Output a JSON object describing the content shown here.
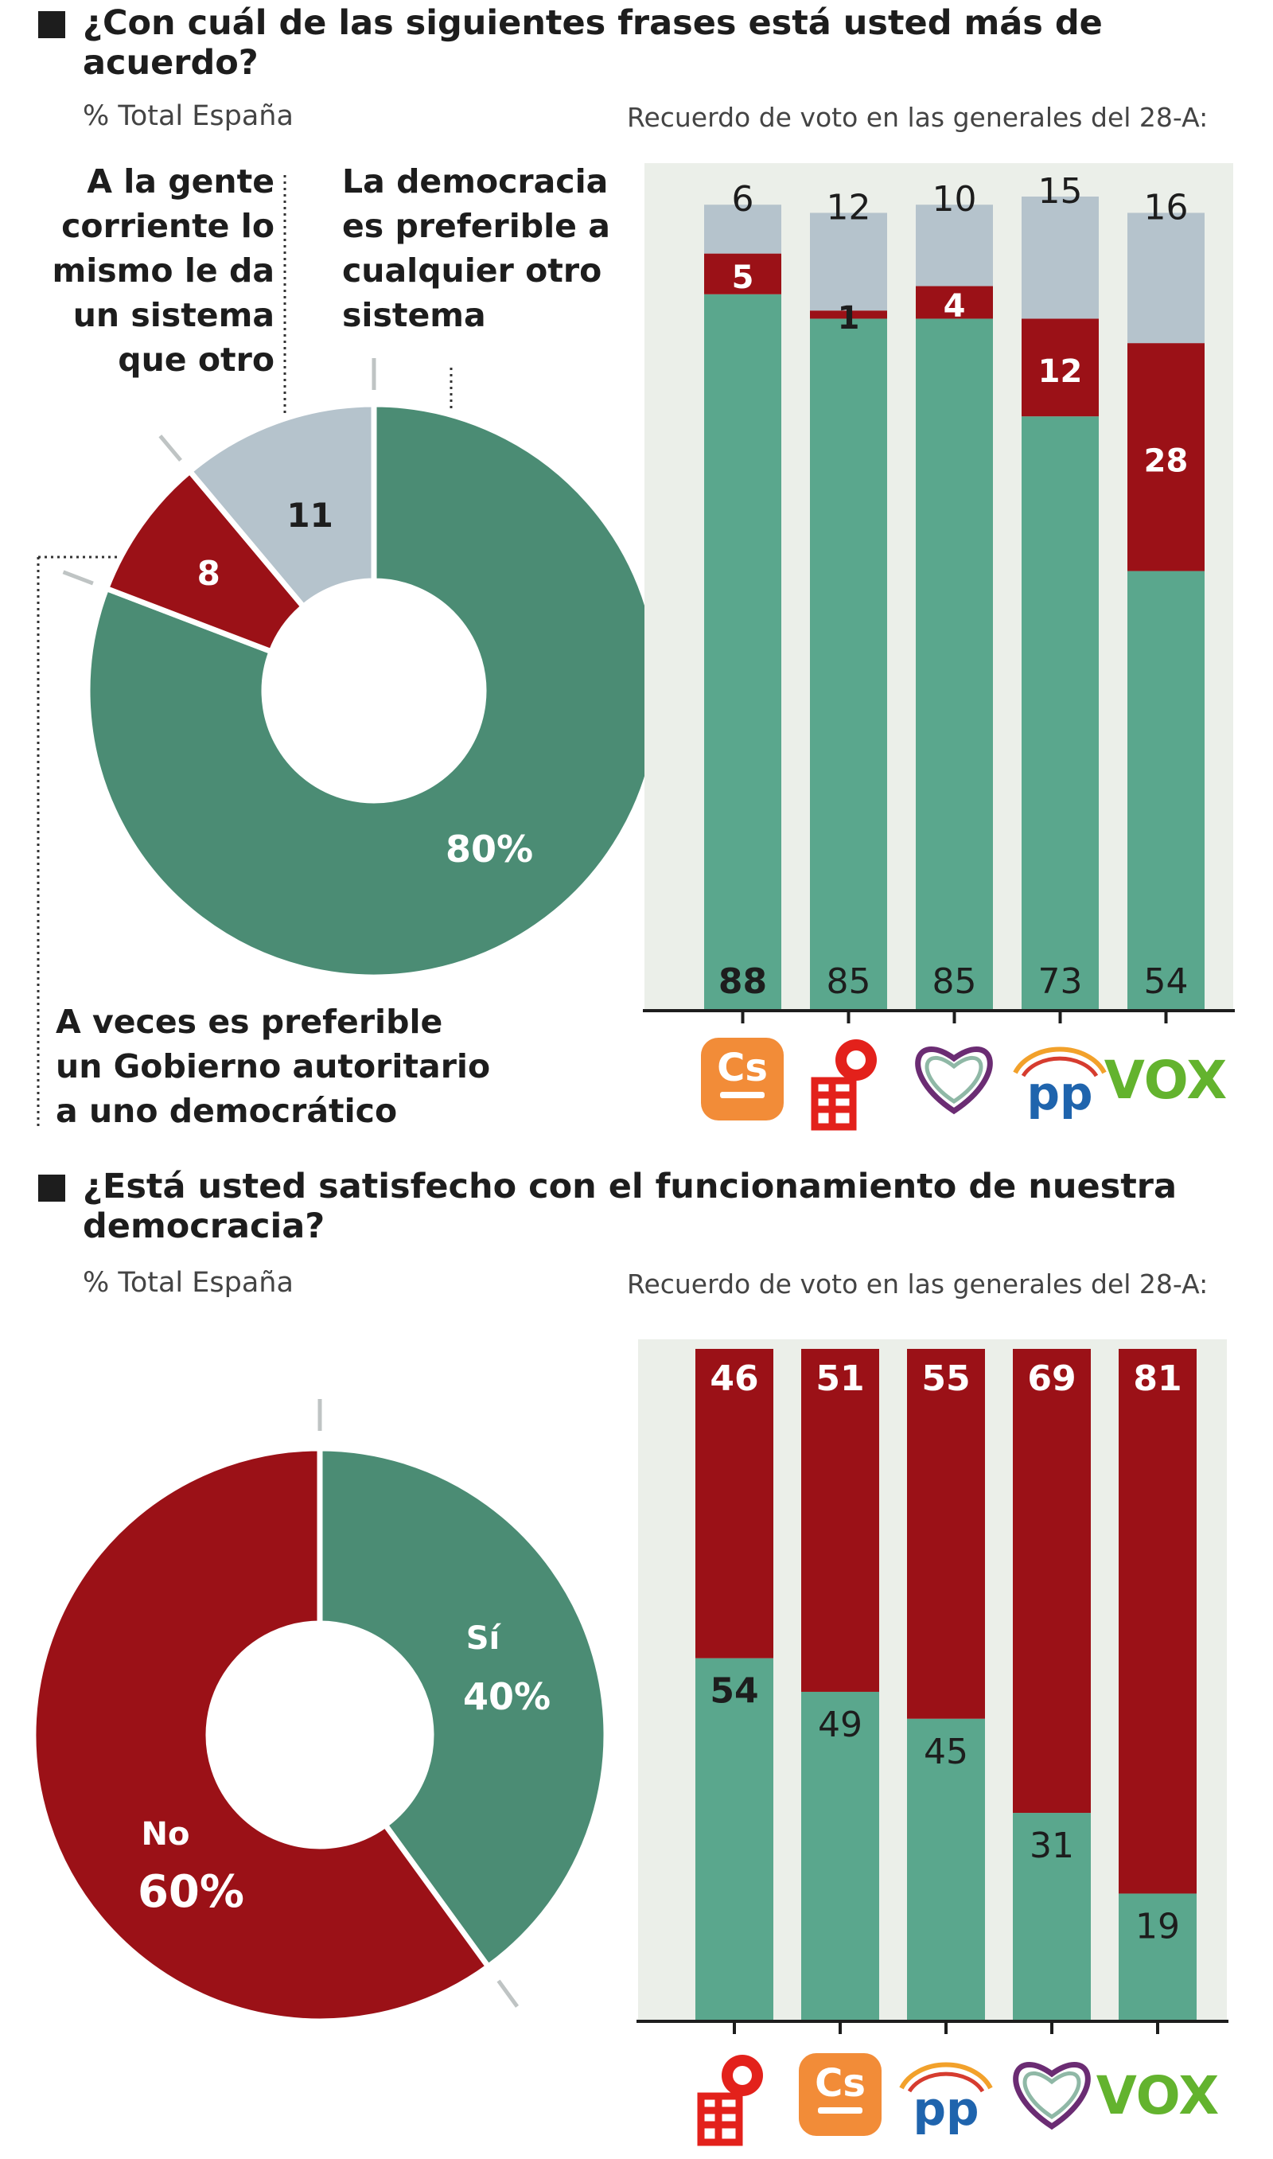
{
  "colors": {
    "green_pie": "#4b8c74",
    "green_bar": "#5aa78d",
    "red": "#9b1117",
    "grey": "#b5c3cc",
    "panel": "#ebefe9",
    "text": "#1d1d1d",
    "cs_orange": "#f28c38",
    "psoe_red": "#e3211b",
    "pp_blue": "#1f64ad",
    "vox_green": "#63b32e",
    "podemos_purple": "#6b2c73"
  },
  "q1": {
    "title": "¿Con cuál de las siguientes frases está usted más de acuerdo?",
    "subtitle_left": "% Total España",
    "subtitle_right": "Recuerdo de voto en las generales del 28-A:",
    "label_same": [
      "A la gente",
      "corriente lo",
      "mismo le da",
      "un sistema",
      "que otro"
    ],
    "label_democracy": [
      "La democracia",
      "es preferible a",
      "cualquier otro",
      "sistema"
    ],
    "label_authoritarian": [
      "A veces es preferible",
      "un Gobierno autoritario",
      "a uno democrático"
    ],
    "logos": [
      "Cs",
      "PSOE",
      "Podemos",
      "PP",
      "VOX"
    ]
  },
  "q2": {
    "title": "¿Está usted satisfecho con el funcionamiento de nuestra democracia?",
    "subtitle_left": "% Total España",
    "subtitle_right": "Recuerdo de voto en las generales del 28-A:",
    "logos": [
      "PSOE",
      "Cs",
      "PP",
      "Podemos",
      "VOX"
    ]
  },
  "chart_data": [
    {
      "type": "pie",
      "title": "¿Con cuál de las siguientes frases está usted más de acuerdo?",
      "subtitle": "% Total España",
      "slices": [
        {
          "name": "La democracia es preferible a cualquier otro sistema",
          "value": 80,
          "label": "80%"
        },
        {
          "name": "A veces es preferible un Gobierno autoritario a uno democrático",
          "value": 8,
          "label": "8"
        },
        {
          "name": "A la gente corriente lo mismo le da un sistema que otro",
          "value": 11,
          "label": "11"
        }
      ]
    },
    {
      "type": "bar",
      "stacked": true,
      "title": "Recuerdo de voto en las generales del 28-A:",
      "categories": [
        "Cs",
        "PSOE",
        "Podemos",
        "PP",
        "VOX"
      ],
      "series": [
        {
          "name": "La democracia es preferible",
          "values": [
            88,
            85,
            85,
            73,
            54
          ],
          "labels": [
            "88",
            "85",
            "85",
            "73",
            "54"
          ]
        },
        {
          "name": "Gobierno autoritario",
          "values": [
            5,
            1,
            4,
            12,
            28
          ],
          "labels": [
            "5",
            "1",
            "4",
            "12",
            "28"
          ]
        },
        {
          "name": "Lo mismo le da",
          "values": [
            6,
            12,
            10,
            15,
            16
          ],
          "labels": [
            "6",
            "12",
            "10",
            "15",
            "16"
          ]
        }
      ],
      "ylim": [
        0,
        100
      ]
    },
    {
      "type": "pie",
      "title": "¿Está usted satisfecho con el funcionamiento de nuestra democracia?",
      "subtitle": "% Total España",
      "slices": [
        {
          "name": "Sí",
          "value": 40,
          "label": "40%"
        },
        {
          "name": "No",
          "value": 60,
          "label": "60%"
        }
      ]
    },
    {
      "type": "bar",
      "stacked": true,
      "title": "Recuerdo de voto en las generales del 28-A:",
      "categories": [
        "PSOE",
        "Cs",
        "PP",
        "Podemos",
        "VOX"
      ],
      "series": [
        {
          "name": "Sí",
          "values": [
            54,
            49,
            45,
            31,
            19
          ],
          "labels": [
            "54",
            "49",
            "45",
            "31",
            "19"
          ]
        },
        {
          "name": "No",
          "values": [
            46,
            51,
            55,
            69,
            81
          ],
          "labels": [
            "46",
            "51",
            "55",
            "69",
            "81"
          ]
        }
      ],
      "ylim": [
        0,
        100
      ]
    }
  ]
}
